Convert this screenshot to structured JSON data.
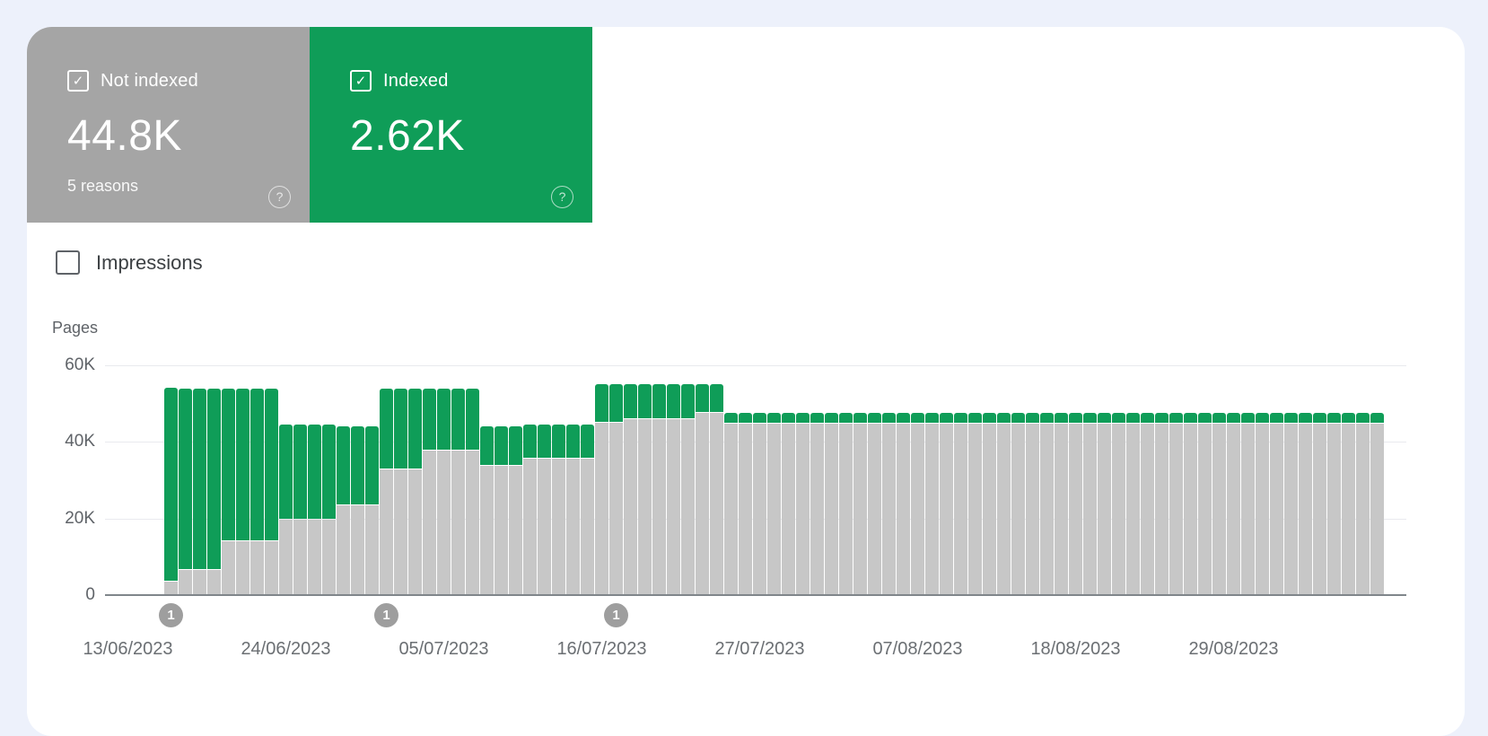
{
  "page": {
    "background_color": "#edf1fb",
    "card_color": "#ffffff"
  },
  "summary_tiles": [
    {
      "id": "not-indexed",
      "label": "Not indexed",
      "value": "44.8K",
      "sub_label": "5 reasons",
      "checked": true,
      "color": "#a5a5a5",
      "help_icon": "?"
    },
    {
      "id": "indexed",
      "label": "Indexed",
      "value": "2.62K",
      "sub_label": "",
      "checked": true,
      "color": "#0f9d58",
      "help_icon": "?"
    }
  ],
  "impressions_toggle": {
    "label": "Impressions",
    "checked": false
  },
  "chart_data": {
    "type": "bar",
    "stacked": true,
    "ylabel": "Pages",
    "ylim": [
      0,
      60000
    ],
    "grid": true,
    "legend_position": "none",
    "y_ticks": [
      {
        "label": "60K",
        "value": 60000
      },
      {
        "label": "40K",
        "value": 40000
      },
      {
        "label": "20K",
        "value": 20000
      },
      {
        "label": "0",
        "value": 0
      }
    ],
    "x_ticks": [
      {
        "label": "13/06/2023",
        "day_index": -3
      },
      {
        "label": "24/06/2023",
        "day_index": 8
      },
      {
        "label": "05/07/2023",
        "day_index": 19
      },
      {
        "label": "16/07/2023",
        "day_index": 30
      },
      {
        "label": "27/07/2023",
        "day_index": 41
      },
      {
        "label": "07/08/2023",
        "day_index": 52
      },
      {
        "label": "18/08/2023",
        "day_index": 63
      },
      {
        "label": "29/08/2023",
        "day_index": 74
      }
    ],
    "series": [
      {
        "name": "Not indexed",
        "color": "#c7c7c7"
      },
      {
        "name": "Indexed",
        "color": "#0f9d58"
      }
    ],
    "first_bar_date": "16/06/2023",
    "runs": [
      {
        "start_date": "16/06/2023",
        "days": 1,
        "not_indexed": 3500,
        "indexed": 50500
      },
      {
        "start_date": "17/06/2023",
        "days": 3,
        "not_indexed": 6500,
        "indexed": 47100
      },
      {
        "start_date": "20/06/2023",
        "days": 4,
        "not_indexed": 14000,
        "indexed": 39600
      },
      {
        "start_date": "24/06/2023",
        "days": 4,
        "not_indexed": 19800,
        "indexed": 24600
      },
      {
        "start_date": "28/06/2023",
        "days": 3,
        "not_indexed": 23400,
        "indexed": 20400
      },
      {
        "start_date": "01/07/2023",
        "days": 3,
        "not_indexed": 32900,
        "indexed": 20900
      },
      {
        "start_date": "04/07/2023",
        "days": 4,
        "not_indexed": 37800,
        "indexed": 16000
      },
      {
        "start_date": "08/07/2023",
        "days": 3,
        "not_indexed": 33800,
        "indexed": 10100
      },
      {
        "start_date": "11/07/2023",
        "days": 5,
        "not_indexed": 35600,
        "indexed": 8600
      },
      {
        "start_date": "16/07/2023",
        "days": 2,
        "not_indexed": 44900,
        "indexed": 9800
      },
      {
        "start_date": "18/07/2023",
        "days": 5,
        "not_indexed": 45900,
        "indexed": 8800
      },
      {
        "start_date": "23/07/2023",
        "days": 2,
        "not_indexed": 47500,
        "indexed": 7200
      },
      {
        "start_date": "25/07/2023",
        "days": 46,
        "not_indexed": 44800,
        "indexed": 2620
      }
    ],
    "markers": [
      {
        "label": "1",
        "date": "16/06/2023",
        "day_index": 0
      },
      {
        "label": "1",
        "date": "01/07/2023",
        "day_index": 15
      },
      {
        "label": "1",
        "date": "17/07/2023",
        "day_index": 31
      }
    ]
  }
}
